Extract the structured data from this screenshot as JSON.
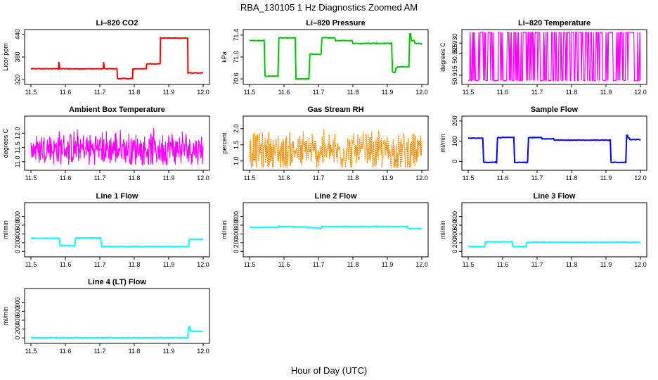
{
  "figure": {
    "title": "RBA_130105  1 Hz Diagnostics Zoomed AM",
    "xlabel": "Hour of Day (UTC)"
  },
  "chart_data": [
    {
      "type": "line",
      "title": "Li–820 CO2",
      "ylabel": "Licor ppm",
      "color": "#ff0000",
      "xlim": [
        11.5,
        12.0
      ],
      "ylim": [
        315,
        445
      ],
      "xticks": [
        11.5,
        11.6,
        11.7,
        11.8,
        11.9,
        12.0
      ],
      "xticklabels": [
        "11.5",
        "11.6",
        "11.7",
        "11.8",
        "11.9",
        "12.0"
      ],
      "yticks": [
        320,
        380,
        440
      ],
      "yticklabels": [
        "320",
        "380",
        "440"
      ],
      "series": [
        {
          "x": [
            11.5,
            11.58,
            11.581,
            11.583,
            11.71,
            11.711,
            11.713,
            11.75,
            11.751,
            11.795,
            11.796,
            11.835,
            11.836,
            11.875,
            11.876,
            11.955,
            11.956,
            11.965,
            12.0
          ],
          "y": [
            349,
            349,
            367,
            349,
            349,
            366,
            349,
            349,
            323,
            323,
            349,
            349,
            362,
            362,
            430,
            430,
            338,
            338,
            338
          ]
        }
      ]
    },
    {
      "type": "line",
      "title": "Li–820 Pressure",
      "ylabel": "kPa",
      "color": "#00c800",
      "xlim": [
        11.5,
        12.0
      ],
      "ylim": [
        70.55,
        71.45
      ],
      "xticks": [
        11.5,
        11.6,
        11.7,
        11.8,
        11.9,
        12.0
      ],
      "xticklabels": [
        "11.5",
        "11.6",
        "11.7",
        "11.8",
        "11.9",
        "12.0"
      ],
      "yticks": [
        70.6,
        71.0,
        71.4
      ],
      "yticklabels": [
        "70.6",
        "71.0",
        "71.4"
      ],
      "series": [
        {
          "x": [
            11.5,
            11.54,
            11.545,
            11.58,
            11.585,
            11.63,
            11.635,
            11.67,
            11.675,
            11.705,
            11.71,
            11.75,
            11.8,
            11.85,
            11.87,
            11.91,
            11.915,
            11.925,
            11.93,
            11.96,
            11.965,
            11.97,
            11.98,
            12.0
          ],
          "y": [
            71.3,
            71.3,
            70.65,
            70.65,
            71.35,
            71.35,
            70.6,
            70.6,
            71.05,
            71.05,
            71.35,
            71.3,
            71.25,
            71.25,
            71.25,
            71.25,
            70.72,
            70.8,
            70.82,
            70.82,
            71.42,
            71.3,
            71.25,
            71.22
          ]
        }
      ]
    },
    {
      "type": "line",
      "title": "Li–820 Temperature",
      "ylabel": "degrees C",
      "color": "#ff00ff",
      "xlim": [
        11.5,
        12.0
      ],
      "ylim": [
        50.912,
        50.935
      ],
      "xticks": [
        11.5,
        11.6,
        11.7,
        11.8,
        11.9,
        12.0
      ],
      "xticklabels": [
        "11.5",
        "11.6",
        "11.7",
        "11.8",
        "11.9",
        "12.0"
      ],
      "yticks": [
        50.915,
        50.925,
        50.93
      ],
      "yticklabels": [
        "50.915",
        "50.925",
        "50.930"
      ],
      "series": [
        {
          "levels": [
            50.9125,
            50.935
          ],
          "note": ""
        }
      ]
    },
    {
      "type": "line",
      "title": "Ambient Box Temperature",
      "ylabel": "degrees C",
      "color": "#ff00ff",
      "xlim": [
        11.5,
        12.0
      ],
      "ylim": [
        10.8,
        12.5
      ],
      "xticks": [
        11.5,
        11.6,
        11.7,
        11.8,
        11.9,
        12.0
      ],
      "xticklabels": [
        "11.5",
        "11.6",
        "11.7",
        "11.8",
        "11.9",
        "12.0"
      ],
      "yticks": [
        11.0,
        11.5,
        12.0
      ],
      "yticklabels": [
        "11.0",
        "11.5",
        "12.0"
      ],
      "series": [
        {
          "band": [
            10.9,
            12.4
          ],
          "center": 11.45
        }
      ]
    },
    {
      "type": "line",
      "title": "Gas Stream RH",
      "ylabel": "percent",
      "color": "#ff8c00",
      "xlim": [
        11.5,
        12.0
      ],
      "ylim": [
        0.8,
        2.3
      ],
      "xticks": [
        11.5,
        11.6,
        11.7,
        11.8,
        11.9,
        12.0
      ],
      "xticklabels": [
        "11.5",
        "11.6",
        "11.7",
        "11.8",
        "11.9",
        "12.0"
      ],
      "yticks": [
        1.0,
        1.5,
        2.0
      ],
      "yticklabels": [
        "1.0",
        "1.5",
        "2.0"
      ],
      "series": [
        {
          "band": [
            0.8,
            2.3
          ],
          "center": 1.3
        }
      ]
    },
    {
      "type": "line",
      "title": "Sample Flow",
      "ylabel": "ml/min",
      "color": "#0000ff",
      "xlim": [
        11.5,
        12.0
      ],
      "ylim": [
        -30,
        210
      ],
      "xticks": [
        11.5,
        11.6,
        11.7,
        11.8,
        11.9,
        12.0
      ],
      "xticklabels": [
        "11.5",
        "11.6",
        "11.7",
        "11.8",
        "11.9",
        "12.0"
      ],
      "yticks": [
        0,
        100,
        200
      ],
      "yticklabels": [
        "0",
        "100",
        "200"
      ],
      "series": [
        {
          "x": [
            11.5,
            11.54,
            11.545,
            11.58,
            11.585,
            11.63,
            11.635,
            11.67,
            11.675,
            11.71,
            11.715,
            11.75,
            11.8,
            11.87,
            11.91,
            11.915,
            11.955,
            11.96,
            11.965,
            11.97,
            12.0
          ],
          "y": [
            115,
            115,
            -5,
            -5,
            118,
            118,
            -5,
            -5,
            118,
            118,
            112,
            105,
            105,
            105,
            105,
            -5,
            -5,
            130,
            115,
            108,
            105
          ]
        }
      ]
    },
    {
      "type": "line",
      "title": "Line 1 Flow",
      "ylabel": "ml/min",
      "color": "#00ffff",
      "xlim": [
        11.5,
        12.0
      ],
      "ylim": [
        -60,
        1050
      ],
      "xticks": [
        11.5,
        11.6,
        11.7,
        11.8,
        11.9,
        12.0
      ],
      "xticklabels": [
        "11.5",
        "11.6",
        "11.7",
        "11.8",
        "11.9",
        "12.0"
      ],
      "yticks": [
        0,
        200,
        400,
        600,
        800
      ],
      "yticklabels": [
        "0",
        "200",
        "400",
        "600",
        "800"
      ],
      "series": [
        {
          "x": [
            11.5,
            11.58,
            11.585,
            11.625,
            11.63,
            11.7,
            11.705,
            11.955,
            11.96,
            12.0
          ],
          "y": [
            300,
            300,
            130,
            130,
            310,
            310,
            110,
            110,
            280,
            280
          ]
        }
      ]
    },
    {
      "type": "line",
      "title": "Line 2 Flow",
      "ylabel": "ml/min",
      "color": "#00ffff",
      "xlim": [
        11.5,
        12.0
      ],
      "ylim": [
        -60,
        1050
      ],
      "xticks": [
        11.5,
        11.6,
        11.7,
        11.8,
        11.9,
        12.0
      ],
      "xticklabels": [
        "11.5",
        "11.6",
        "11.7",
        "11.8",
        "11.9",
        "12.0"
      ],
      "yticks": [
        0,
        200,
        400,
        600,
        800
      ],
      "yticklabels": [
        "0",
        "200",
        "400",
        "600",
        "800"
      ],
      "series": [
        {
          "x": [
            11.5,
            11.58,
            11.585,
            11.63,
            11.67,
            11.675,
            11.705,
            11.71,
            11.955,
            11.96,
            12.0
          ],
          "y": [
            550,
            550,
            570,
            560,
            540,
            540,
            520,
            570,
            570,
            520,
            520
          ]
        }
      ]
    },
    {
      "type": "line",
      "title": "Line 3 Flow",
      "ylabel": "ml/min",
      "color": "#00ffff",
      "xlim": [
        11.5,
        12.0
      ],
      "ylim": [
        -60,
        1050
      ],
      "xticks": [
        11.5,
        11.6,
        11.7,
        11.8,
        11.9,
        12.0
      ],
      "xticklabels": [
        "11.5",
        "11.6",
        "11.7",
        "11.8",
        "11.9",
        "12.0"
      ],
      "yticks": [
        0,
        200,
        400,
        600,
        800
      ],
      "yticklabels": [
        "0",
        "200",
        "400",
        "600",
        "800"
      ],
      "series": [
        {
          "x": [
            11.5,
            11.545,
            11.55,
            11.625,
            11.63,
            11.665,
            11.67,
            12.0
          ],
          "y": [
            110,
            110,
            220,
            220,
            110,
            110,
            210,
            210
          ]
        }
      ]
    },
    {
      "type": "line",
      "title": "Line 4 (LT) Flow",
      "ylabel": "ml/min",
      "color": "#00ffff",
      "xlim": [
        11.5,
        12.0
      ],
      "ylim": [
        -60,
        1050
      ],
      "xticks": [
        11.5,
        11.6,
        11.7,
        11.8,
        11.9,
        12.0
      ],
      "xticklabels": [
        "11.5",
        "11.6",
        "11.7",
        "11.8",
        "11.9",
        "12.0"
      ],
      "yticks": [
        0,
        200,
        400,
        600,
        800
      ],
      "yticklabels": [
        "0",
        "200",
        "400",
        "600",
        "800"
      ],
      "series": [
        {
          "x": [
            11.5,
            11.955,
            11.958,
            11.962,
            11.97,
            12.0
          ],
          "y": [
            5,
            5,
            260,
            160,
            150,
            150
          ]
        }
      ]
    }
  ]
}
